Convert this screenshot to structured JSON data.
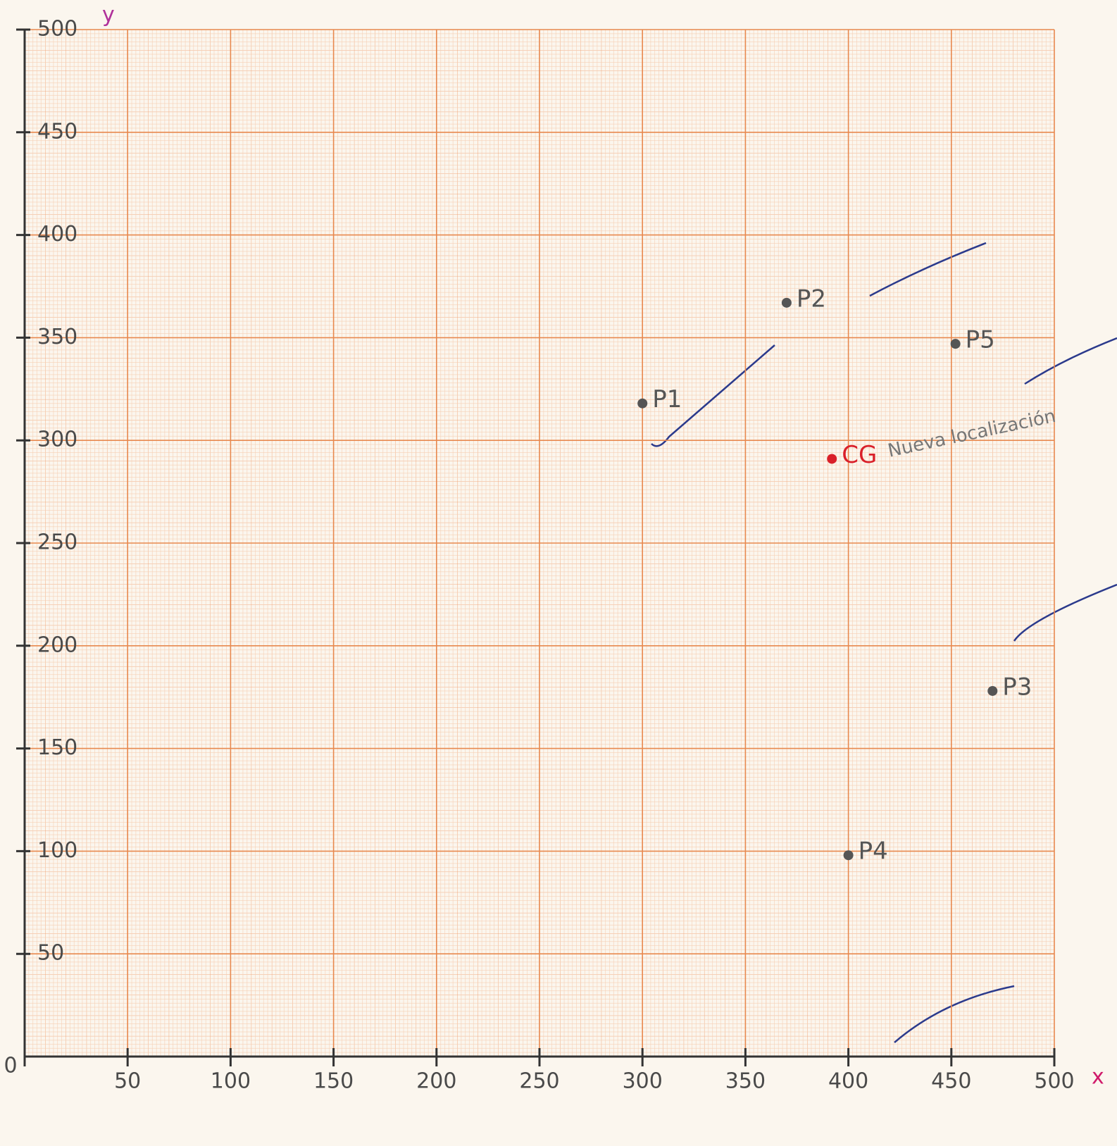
{
  "chart_data": {
    "type": "scatter",
    "xlabel": "x",
    "ylabel": "y",
    "xlim": [
      0,
      500
    ],
    "ylim": [
      0,
      500
    ],
    "xticks": [
      0,
      50,
      100,
      150,
      200,
      250,
      300,
      350,
      400,
      450,
      500
    ],
    "yticks": [
      50,
      100,
      150,
      200,
      250,
      300,
      350,
      400,
      450,
      500
    ],
    "grid": true,
    "series": [
      {
        "name": "P1",
        "color": "#555555",
        "x": [
          300
        ],
        "values": [
          318
        ]
      },
      {
        "name": "P2",
        "color": "#555555",
        "x": [
          370
        ],
        "values": [
          367
        ]
      },
      {
        "name": "P5",
        "color": "#555555",
        "x": [
          452
        ],
        "values": [
          347
        ]
      },
      {
        "name": "P3",
        "color": "#555555",
        "x": [
          470
        ],
        "values": [
          178
        ]
      },
      {
        "name": "P4",
        "color": "#555555",
        "x": [
          400
        ],
        "values": [
          98
        ]
      },
      {
        "name": "CG",
        "color": "#d9202a",
        "x": [
          392
        ],
        "values": [
          291
        ]
      }
    ],
    "annotation": "Nueva localización"
  }
}
